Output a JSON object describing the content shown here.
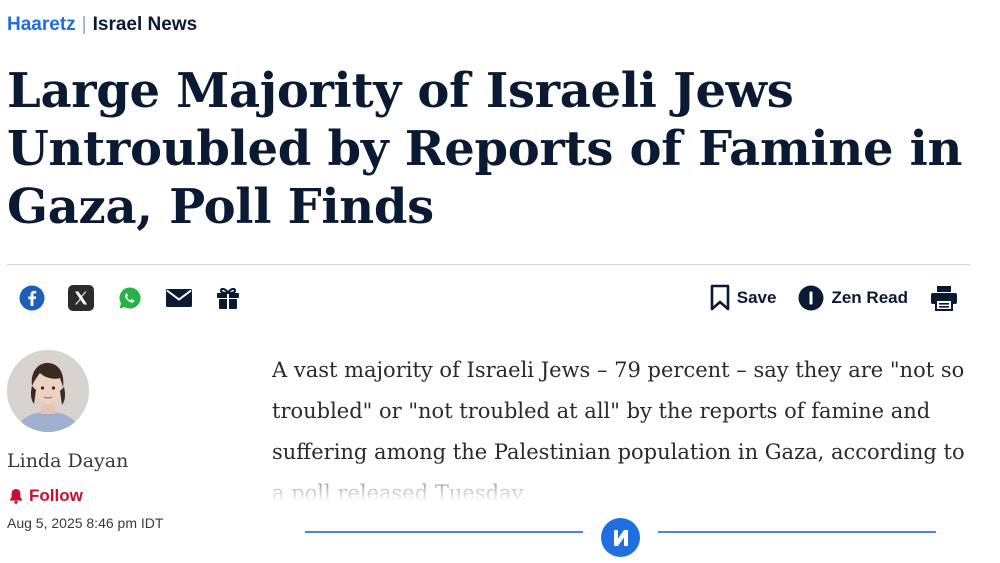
{
  "breadcrumb": {
    "brand": "Haaretz",
    "separator": "|",
    "section": "Israel News"
  },
  "article": {
    "headline": "Large Majority of Israeli Jews Untroubled by Reports of Famine in Gaza, Poll Finds",
    "lede": "A vast majority of Israeli Jews – 79 percent – say they are \"not so troubled\" or \"not troubled at all\" by the reports of famine and suffering among the Palestinian population in Gaza, according to a poll released Tuesday."
  },
  "share_icons": [
    "facebook-icon",
    "x-icon",
    "whatsapp-icon",
    "mail-icon",
    "gift-icon"
  ],
  "tools": {
    "save_label": "Save",
    "zen_label": "Zen Read",
    "print_icon": "print-icon"
  },
  "author": {
    "name": "Linda Dayan",
    "follow_label": "Follow",
    "date": "Aug 5, 2025 8:46 pm IDT"
  },
  "colors": {
    "brand_blue": "#1f6fe0",
    "text_dark": "#0b1a33",
    "follow_red": "#c8102e",
    "divider_blue": "#4a86e8"
  }
}
